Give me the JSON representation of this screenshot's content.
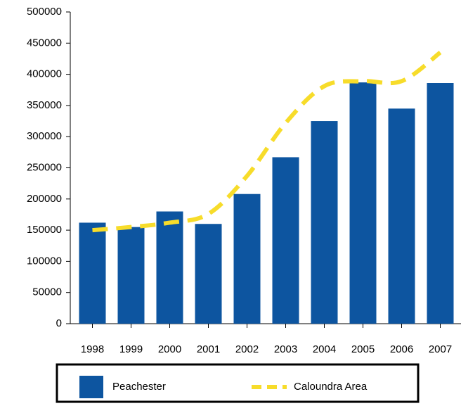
{
  "chart_data": {
    "type": "bar",
    "categories": [
      "1998",
      "1999",
      "2000",
      "2001",
      "2002",
      "2003",
      "2004",
      "2005",
      "2006",
      "2007"
    ],
    "series": [
      {
        "name": "Peachester",
        "type": "bar",
        "color": "#0d55a0",
        "values": [
          162000,
          155000,
          180000,
          160000,
          208000,
          267000,
          325000,
          387000,
          345000,
          386000
        ]
      },
      {
        "name": "Caloundra Area",
        "type": "line",
        "dashed": true,
        "color": "#f7dc2a",
        "values": [
          150000,
          155000,
          162000,
          176000,
          237000,
          322000,
          381000,
          389000,
          389000,
          435000
        ]
      }
    ],
    "ylim": [
      0,
      500000
    ],
    "yticks": [
      0,
      50000,
      100000,
      150000,
      200000,
      250000,
      300000,
      350000,
      400000,
      450000,
      500000
    ]
  }
}
